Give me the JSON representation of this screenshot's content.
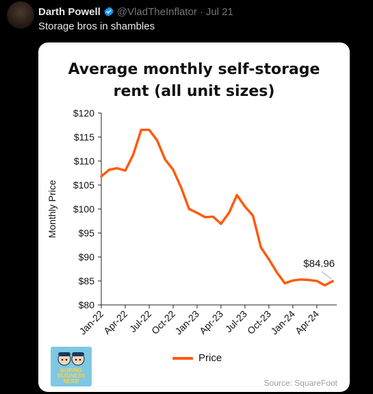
{
  "tweet": {
    "author_name": "Darth Powell",
    "handle": "@VladTheInflator",
    "separator": "·",
    "timestamp": "Jul 21",
    "text": "Storage bros in shambles",
    "verified_color": "#1d9bf0"
  },
  "card": {
    "title_line1": "Average monthly self-storage",
    "title_line2": "rent (all unit sizes)",
    "source": "Source: SquareFoot",
    "logo": {
      "line1": "BORING",
      "line2": "BUSINESS",
      "line3": "NERD"
    }
  },
  "chart_data": {
    "type": "line",
    "title": "Average monthly self-storage rent (all unit sizes)",
    "ylabel": "Monthly Price",
    "xlabel": "",
    "ylim": [
      80,
      120
    ],
    "y_ticks": [
      "$80",
      "$85",
      "$90",
      "$95",
      "$100",
      "$105",
      "$110",
      "$115",
      "$120"
    ],
    "y_tick_values": [
      80,
      85,
      90,
      95,
      100,
      105,
      110,
      115,
      120
    ],
    "x_tick_labels": [
      "Jan-22",
      "Apr-22",
      "Jul-22",
      "Oct-22",
      "Jan-23",
      "Apr-23",
      "Jul-23",
      "Oct-23",
      "Jan-24",
      "Apr-24"
    ],
    "x_tick_months": [
      0,
      3,
      6,
      9,
      12,
      15,
      18,
      21,
      24,
      27
    ],
    "series": [
      {
        "name": "Price",
        "color": "#ff5a0a",
        "months": [
          0,
          1,
          2,
          3,
          4,
          5,
          6,
          7,
          8,
          9,
          10,
          11,
          12,
          13,
          14,
          15,
          16,
          17,
          18,
          19,
          20,
          21,
          22,
          23,
          24,
          25,
          26,
          27,
          28,
          29
        ],
        "values": [
          106.8,
          108.2,
          108.5,
          108.0,
          111.3,
          116.5,
          116.5,
          114.3,
          110.3,
          108.2,
          104.5,
          100.0,
          99.2,
          98.3,
          98.4,
          96.9,
          99.2,
          102.9,
          100.5,
          98.6,
          92.0,
          89.5,
          86.8,
          84.5,
          85.1,
          85.3,
          85.2,
          85.0,
          84.1,
          84.96
        ]
      }
    ],
    "annotation": {
      "text": "$84.96"
    },
    "legend_position": "bottom",
    "grid": false
  }
}
